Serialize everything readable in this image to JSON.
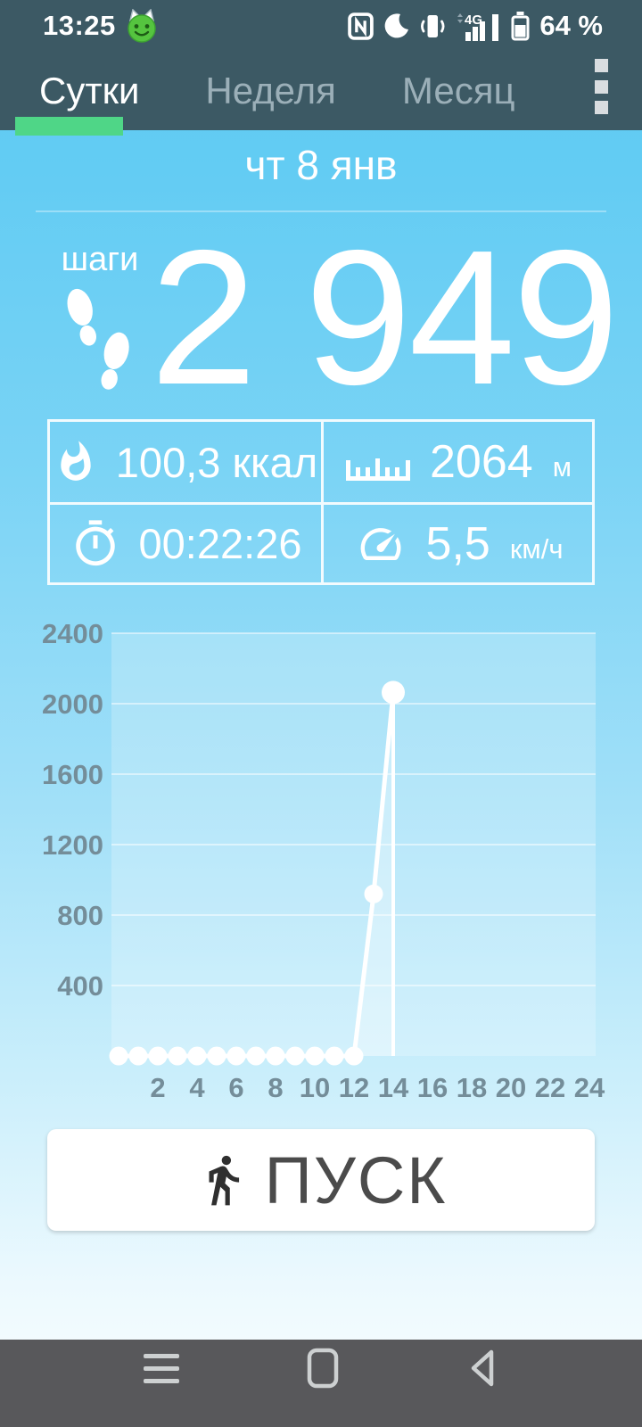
{
  "status_bar": {
    "time": "13:25",
    "battery_percent": "64 %",
    "icon_names": [
      "happymod-emoji-icon",
      "nfc-icon",
      "do-not-disturb-moon-icon",
      "vibrate-icon",
      "signal-4g-icon",
      "battery-icon"
    ]
  },
  "tab_bar": {
    "tabs": [
      {
        "label": "Сутки",
        "active": true
      },
      {
        "label": "Неделя",
        "active": false
      },
      {
        "label": "Месяц",
        "active": false
      }
    ],
    "overflow_menu_icon": "overflow-menu-icon",
    "active_indicator_color": "#4fd687"
  },
  "date_header": {
    "label": "чт 8 янв"
  },
  "steps": {
    "label": "шаги",
    "value": "2 949",
    "icon": "footprints-icon"
  },
  "stats": [
    {
      "name": "calories",
      "icon": "flame-icon",
      "value": "100,3 ккал",
      "unit": ""
    },
    {
      "name": "distance",
      "icon": "ruler-icon",
      "value": "2064",
      "unit": "м"
    },
    {
      "name": "duration",
      "icon": "stopwatch-icon",
      "value": "00:22:26",
      "unit": ""
    },
    {
      "name": "speed",
      "icon": "speedometer-icon",
      "value": "5,5",
      "unit": "км/ч"
    }
  ],
  "chart_data": {
    "type": "line",
    "x": [
      0,
      1,
      2,
      3,
      4,
      5,
      6,
      7,
      8,
      9,
      10,
      11,
      12,
      13,
      14
    ],
    "values": [
      0,
      0,
      0,
      0,
      0,
      0,
      0,
      0,
      0,
      0,
      0,
      0,
      0,
      920,
      2064
    ],
    "x_ticks": [
      2,
      4,
      6,
      8,
      10,
      12,
      14,
      16,
      18,
      20,
      22,
      24
    ],
    "y_ticks": [
      400,
      800,
      1200,
      1600,
      2000,
      2400
    ],
    "xlim": [
      0,
      24
    ],
    "ylim": [
      0,
      2400
    ],
    "grid": true,
    "legend": "none",
    "line_color": "#ffffff",
    "tick_label_color": "#748d99",
    "plot_bg": "rgba(255,255,255,0.22)"
  },
  "start_button": {
    "label": "ПУСК",
    "icon": "walking-person-icon"
  },
  "nav_bar": {
    "icon_names": [
      "recent-apps-menu-icon",
      "home-icon",
      "back-icon"
    ]
  },
  "colors": {
    "header_bg": "#3c5964",
    "accent_green": "#4fd687",
    "page_top_blue": "#5dc9f2",
    "nav_bar_bg": "#58585b",
    "button_text": "#4b4b4b"
  }
}
